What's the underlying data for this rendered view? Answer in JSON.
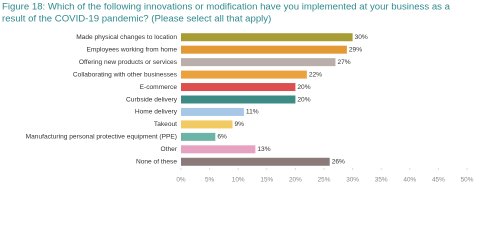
{
  "chart_data": {
    "type": "hbar",
    "title_lines": [
      "Figure 18: Which of the following innovations or modification have you implemented at your business as a",
      "result of the COVID-19 pandemic? (Please select all that apply)"
    ],
    "categories": [
      "Made physical changes to location",
      "Employees working from home",
      "Offering new products or services",
      "Collaborating with other businesses",
      "E-commerce",
      "Curbside delivery",
      "Home delivery",
      "Takeout",
      "Manufacturing personal protective equipment (PPE)",
      "Other",
      "None of these"
    ],
    "values": [
      30,
      29,
      27,
      22,
      20,
      20,
      11,
      9,
      6,
      13,
      26
    ],
    "value_labels": [
      "30%",
      "29%",
      "27%",
      "22%",
      "20%",
      "20%",
      "11%",
      "9%",
      "6%",
      "13%",
      "26%"
    ],
    "colors": [
      "#a89d35",
      "#e39a35",
      "#b9aeaa",
      "#eba13d",
      "#dd4f4f",
      "#3c8c85",
      "#a6c8e6",
      "#f2ca62",
      "#6cb5a6",
      "#e6a3c1",
      "#8a7b7a"
    ],
    "xlim": [
      0,
      50
    ],
    "xticks": [
      {
        "value": 0,
        "label": "0%"
      },
      {
        "value": 5,
        "label": "5%"
      },
      {
        "value": 10,
        "label": "10%"
      },
      {
        "value": 15,
        "label": "15%"
      },
      {
        "value": 20,
        "label": "20%"
      },
      {
        "value": 25,
        "label": "25%"
      },
      {
        "value": 30,
        "label": "30%"
      },
      {
        "value": 35,
        "label": "35%"
      },
      {
        "value": 40,
        "label": "40%"
      },
      {
        "value": 45,
        "label": "45%"
      },
      {
        "value": 50,
        "label": "50%"
      }
    ]
  }
}
